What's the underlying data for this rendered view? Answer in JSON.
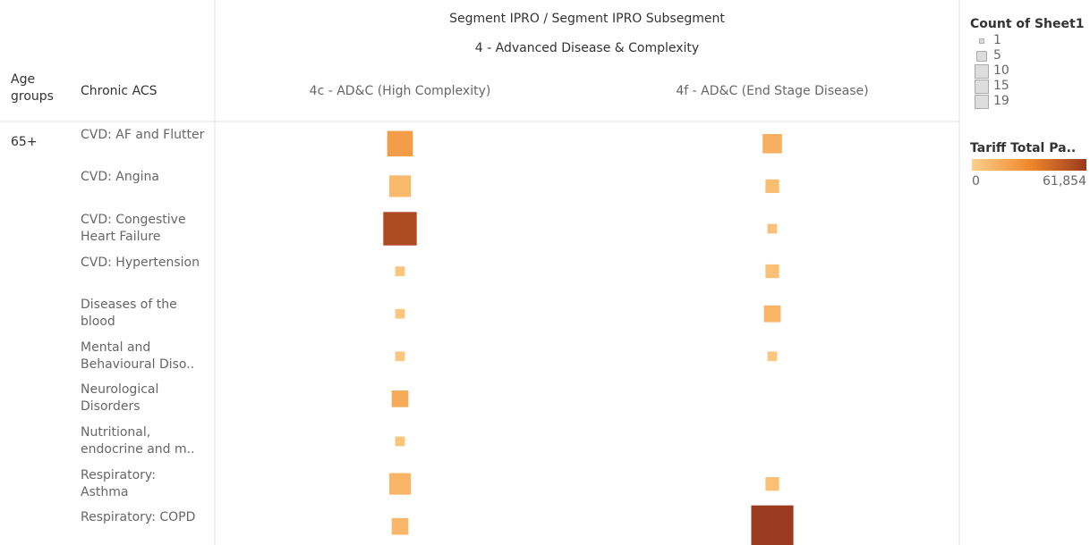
{
  "chart_data": {
    "type": "square",
    "title": "Segment IPRO / Segment IPRO Subsegment",
    "segment": "4 - Advanced Disease & Complexity",
    "row_headers": [
      "Age groups",
      "Chronic ACS"
    ],
    "age_group": "65+",
    "categories": [
      "CVD: AF and Flutter",
      "CVD: Angina",
      "CVD: Congestive Heart Failure",
      "CVD: Hypertension",
      "Diseases of the blood",
      "Mental and Behavioural Diso..",
      "Neurological Disorders",
      "Nutritional, endocrine and m..",
      "Respiratory: Asthma",
      "Respiratory: COPD"
    ],
    "series": [
      {
        "name": "4c - AD&C (High Complexity)",
        "counts": [
          7,
          5,
          12,
          1,
          1,
          1,
          3,
          1,
          5,
          3
        ],
        "tariffs": [
          22000,
          10000,
          55000,
          5000,
          4000,
          4000,
          16000,
          5000,
          12000,
          11000
        ]
      },
      {
        "name": "4f - AD&C (End Stage Disease)",
        "counts": [
          4,
          2,
          1,
          2,
          3,
          1,
          null,
          null,
          2,
          19
        ],
        "tariffs": [
          14000,
          8000,
          6000,
          7000,
          12000,
          4000,
          null,
          null,
          7000,
          61854
        ]
      }
    ],
    "size_legend": {
      "title": "Count of Sheet1",
      "values": [
        1,
        5,
        10,
        15,
        19
      ]
    },
    "color_legend": {
      "title": "Tariff Total Pa..",
      "range": [
        0,
        {
          "value": 61854,
          "label": "61,854"
        }
      ]
    },
    "colors": [
      "#fdd08c",
      "#f0892c",
      "#9b3a1e"
    ]
  }
}
